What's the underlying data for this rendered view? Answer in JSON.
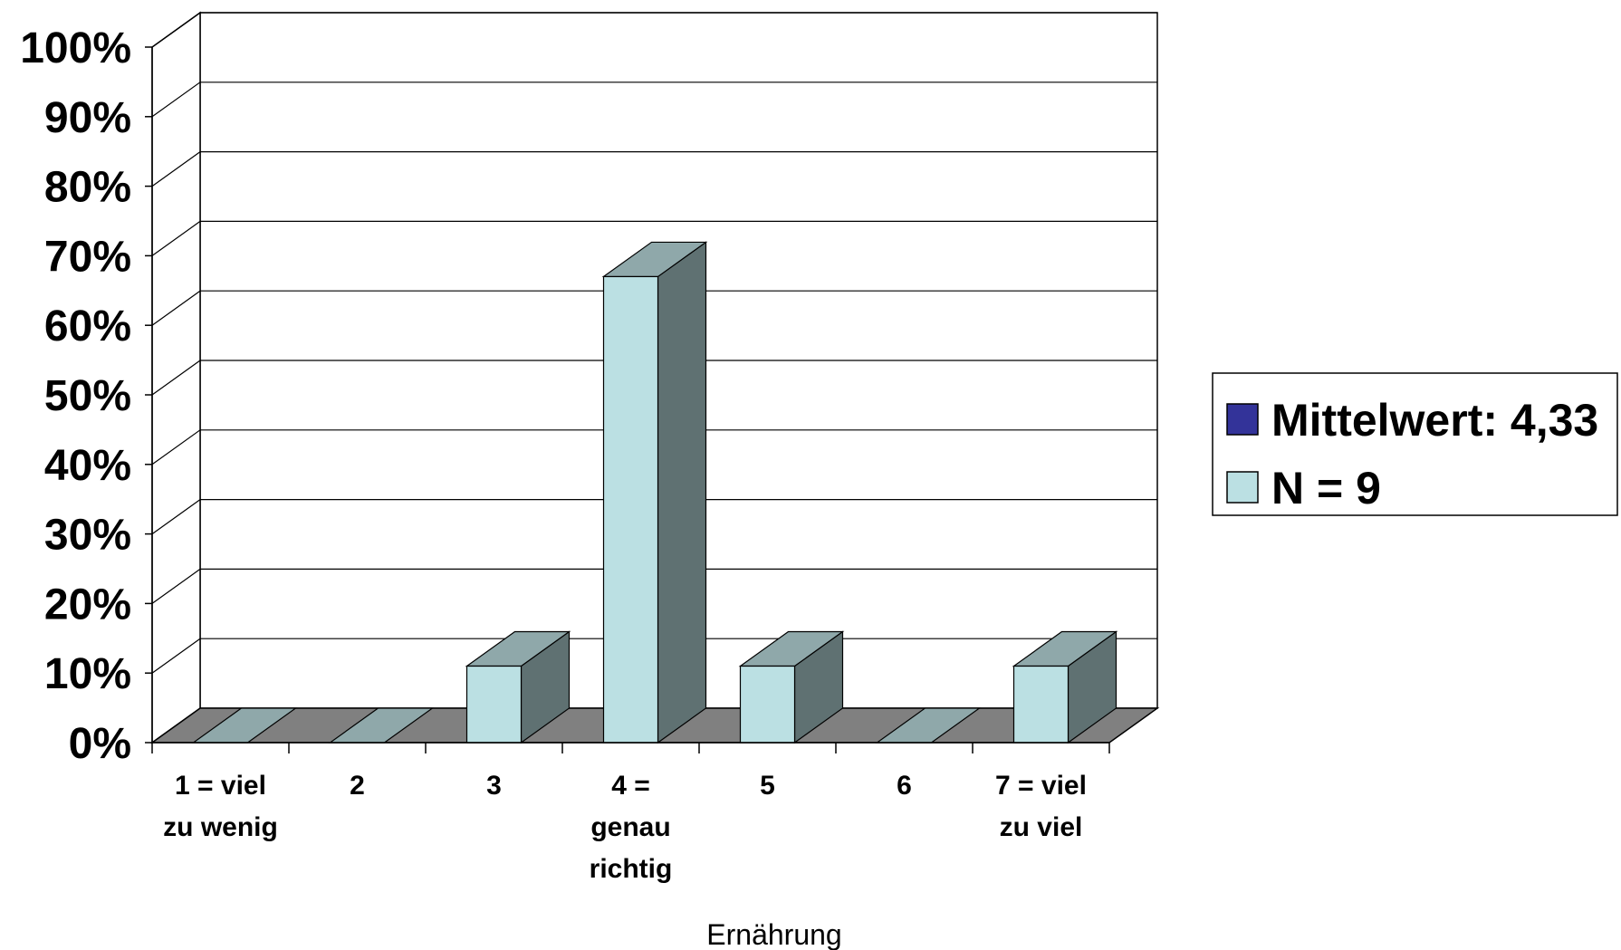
{
  "chart_data": {
    "type": "bar",
    "style": "3d",
    "categories": [
      [
        "1 = viel",
        "zu wenig"
      ],
      [
        "2"
      ],
      [
        "3"
      ],
      [
        "4 =",
        "genau",
        "richtig"
      ],
      [
        "5"
      ],
      [
        "6"
      ],
      [
        "7 = viel",
        "zu viel"
      ]
    ],
    "values": [
      0,
      0,
      11,
      67,
      11,
      0,
      11
    ],
    "ylim": [
      0,
      100
    ],
    "yticks": [
      "0%",
      "10%",
      "20%",
      "30%",
      "40%",
      "50%",
      "60%",
      "70%",
      "80%",
      "90%",
      "100%"
    ],
    "xlabel": "Ernährung",
    "ylabel": "",
    "grid": true,
    "legend": {
      "placement": "right",
      "items": [
        {
          "label": "Mittelwert: 4,33",
          "color": "#333399"
        },
        {
          "label": "N = 9",
          "color": "#bbe0e3"
        }
      ]
    },
    "colors": {
      "bar_front": "#bbe0e3",
      "bar_top": "#8fa8aa",
      "bar_side": "#5f7172",
      "floor": "#808080",
      "empty_slot": "#8fa8aa"
    }
  }
}
